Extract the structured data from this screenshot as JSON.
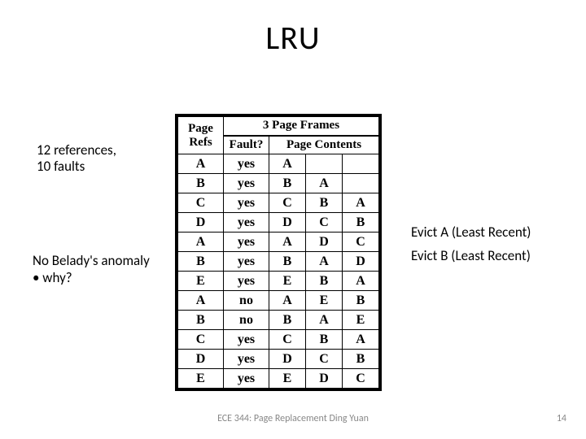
{
  "title": "LRU",
  "note1_line1": "12 references,",
  "note1_line2": "10 faults",
  "note2_line1": "No Belady's anomaly",
  "note2_line2": "• why?",
  "annot1": "Evict A (Least Recent)",
  "annot2": "Evict B (Least Recent)",
  "footer": "ECE 344: Page Replacement Ding Yuan",
  "pagenum": "14",
  "table": {
    "hdr_refs": "Page\nRefs",
    "hdr_frames": "3 Page Frames",
    "hdr_fault": "Fault?",
    "hdr_contents": "Page Contents",
    "rows": [
      {
        "ref": "A",
        "fault": "yes",
        "c0": "A",
        "c1": "",
        "c2": ""
      },
      {
        "ref": "B",
        "fault": "yes",
        "c0": "B",
        "c1": "A",
        "c2": ""
      },
      {
        "ref": "C",
        "fault": "yes",
        "c0": "C",
        "c1": "B",
        "c2": "A"
      },
      {
        "ref": "D",
        "fault": "yes",
        "c0": "D",
        "c1": "C",
        "c2": "B"
      },
      {
        "ref": "A",
        "fault": "yes",
        "c0": "A",
        "c1": "D",
        "c2": "C"
      },
      {
        "ref": "B",
        "fault": "yes",
        "c0": "B",
        "c1": "A",
        "c2": "D"
      },
      {
        "ref": "E",
        "fault": "yes",
        "c0": "E",
        "c1": "B",
        "c2": "A"
      },
      {
        "ref": "A",
        "fault": "no",
        "c0": "A",
        "c1": "E",
        "c2": "B"
      },
      {
        "ref": "B",
        "fault": "no",
        "c0": "B",
        "c1": "A",
        "c2": "E"
      },
      {
        "ref": "C",
        "fault": "yes",
        "c0": "C",
        "c1": "B",
        "c2": "A"
      },
      {
        "ref": "D",
        "fault": "yes",
        "c0": "D",
        "c1": "C",
        "c2": "B"
      },
      {
        "ref": "E",
        "fault": "yes",
        "c0": "E",
        "c1": "D",
        "c2": "C"
      }
    ]
  },
  "colors": {
    "text": "#000000",
    "footer": "#888888",
    "bg": "#ffffff",
    "border": "#000000"
  }
}
